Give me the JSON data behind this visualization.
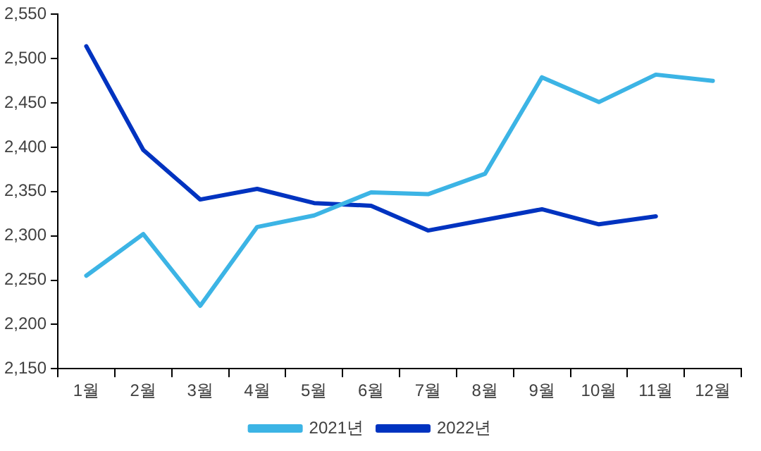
{
  "chart_data": {
    "type": "line",
    "categories": [
      "1월",
      "2월",
      "3월",
      "4월",
      "5월",
      "6월",
      "7월",
      "8월",
      "9월",
      "10월",
      "11월",
      "12월"
    ],
    "series": [
      {
        "name": "2021년",
        "color": "#3cb4e5",
        "values": [
          2255,
          2302,
          2221,
          2310,
          2323,
          2349,
          2347,
          2370,
          2479,
          2451,
          2482,
          2475
        ]
      },
      {
        "name": "2022년",
        "color": "#0033c0",
        "values": [
          2514,
          2397,
          2341,
          2353,
          2337,
          2334,
          2306,
          2318,
          2330,
          2313,
          2322,
          null
        ]
      }
    ],
    "ylim": [
      2150,
      2550
    ],
    "yticks": [
      {
        "value": 2150,
        "label": "2,150"
      },
      {
        "value": 2200,
        "label": "2,200"
      },
      {
        "value": 2250,
        "label": "2,250"
      },
      {
        "value": 2300,
        "label": "2,300"
      },
      {
        "value": 2350,
        "label": "2,350"
      },
      {
        "value": 2400,
        "label": "2,400"
      },
      {
        "value": 2450,
        "label": "2,450"
      },
      {
        "value": 2500,
        "label": "2,500"
      },
      {
        "value": 2550,
        "label": "2,550"
      }
    ],
    "grid": false,
    "legend": "bottom",
    "marker": "none",
    "line_style": "solid"
  }
}
